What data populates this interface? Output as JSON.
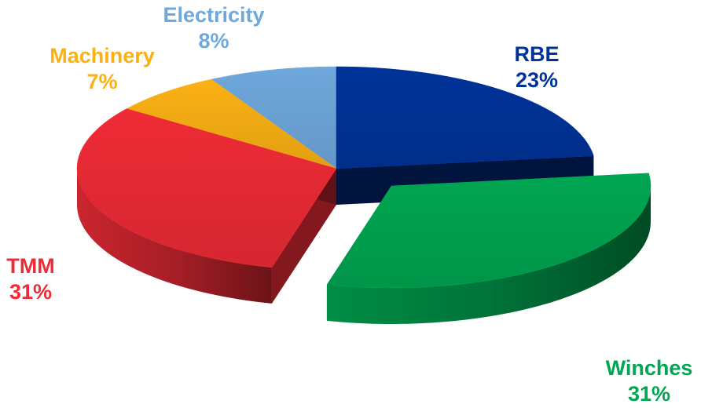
{
  "chart_data": {
    "type": "pie",
    "style": "3d-exploded",
    "title": "",
    "slices": [
      {
        "name": "RBE",
        "value": 23,
        "label": "23%",
        "color": "#003399",
        "exploded": false
      },
      {
        "name": "Winches",
        "value": 31,
        "label": "31%",
        "color": "#00A651",
        "exploded": true
      },
      {
        "name": "TMM",
        "value": 31,
        "label": "31%",
        "color": "#EE2B36",
        "exploded": false
      },
      {
        "name": "Machinery",
        "value": 7,
        "label": "7%",
        "color": "#FBB114",
        "exploded": false
      },
      {
        "name": "Electricity",
        "value": 8,
        "label": "8%",
        "color": "#6FA8DC",
        "exploded": false
      }
    ],
    "legend": "none",
    "grid": false
  }
}
